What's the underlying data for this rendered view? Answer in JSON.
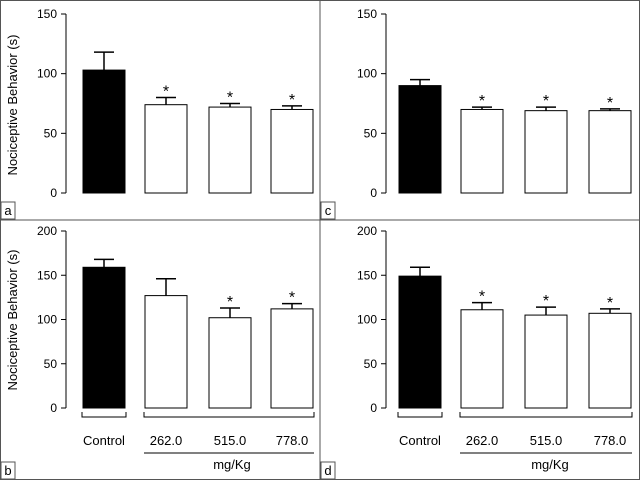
{
  "figure": {
    "ylabel": "Nociceptive Behavior (s)",
    "group_label": "mg/Kg",
    "colors": {
      "control": "#000000",
      "treated": "#ffffff",
      "stroke": "#000000"
    }
  },
  "chart_data": [
    {
      "panel": "a",
      "type": "bar",
      "categories": [
        "Control",
        "262.0",
        "515.0",
        "778.0"
      ],
      "values": [
        103,
        74,
        72,
        70
      ],
      "errors": [
        15,
        6,
        3,
        3
      ],
      "significant": [
        false,
        true,
        true,
        true
      ],
      "ylim": [
        0,
        150
      ],
      "yticks": [
        0,
        50,
        100,
        150
      ],
      "ylabel": "Nociceptive Behavior (s)",
      "xlabel": "",
      "show_categories": false
    },
    {
      "panel": "c",
      "type": "bar",
      "categories": [
        "Control",
        "262.0",
        "515.0",
        "778.0"
      ],
      "values": [
        90,
        70,
        69,
        69
      ],
      "errors": [
        5,
        2,
        3,
        1.5
      ],
      "significant": [
        false,
        true,
        true,
        true
      ],
      "ylim": [
        0,
        150
      ],
      "yticks": [
        0,
        50,
        100,
        150
      ],
      "ylabel": "",
      "xlabel": "",
      "show_categories": false
    },
    {
      "panel": "b",
      "type": "bar",
      "categories": [
        "Control",
        "262.0",
        "515.0",
        "778.0"
      ],
      "values": [
        159,
        127,
        102,
        112
      ],
      "errors": [
        9,
        19,
        11,
        6
      ],
      "significant": [
        false,
        false,
        true,
        true
      ],
      "ylim": [
        0,
        200
      ],
      "yticks": [
        0,
        50,
        100,
        150,
        200
      ],
      "ylabel": "Nociceptive Behavior (s)",
      "xlabel": "mg/Kg",
      "show_categories": true
    },
    {
      "panel": "d",
      "type": "bar",
      "categories": [
        "Control",
        "262.0",
        "515.0",
        "778.0"
      ],
      "values": [
        149,
        111,
        105,
        107
      ],
      "errors": [
        10,
        8,
        9,
        5
      ],
      "significant": [
        false,
        true,
        true,
        true
      ],
      "ylim": [
        0,
        200
      ],
      "yticks": [
        0,
        50,
        100,
        150,
        200
      ],
      "ylabel": "",
      "xlabel": "mg/Kg",
      "show_categories": true
    }
  ]
}
